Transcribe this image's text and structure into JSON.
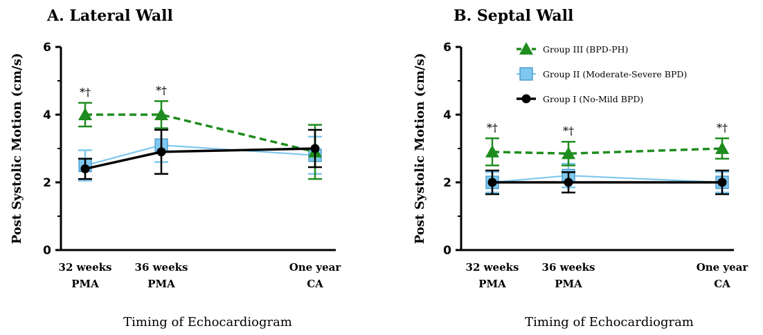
{
  "colors": {
    "group3": "#1e8c1e",
    "group2": "#7fc8ef",
    "group1": "#000000"
  },
  "legend": {
    "placement": "top-right of panel B",
    "items": [
      {
        "label": "Group III (BPD-PH)",
        "marker": "triangle",
        "line": "dashed",
        "color": "#1e8c1e"
      },
      {
        "label": "Group II (Moderate-Severe BPD)",
        "marker": "square",
        "line": "solid",
        "color": "#7fc8ef"
      },
      {
        "label": "Group I (No-Mild BPD)",
        "marker": "circle",
        "line": "solid",
        "color": "#000000"
      }
    ]
  },
  "chart_data": [
    {
      "type": "line",
      "title": "A. Lateral Wall",
      "xlabel": "Timing of Echocardiogram",
      "ylabel": "Post Systolic Motion (cm/s)",
      "ylim": [
        0,
        6
      ],
      "yticks": [
        "0",
        "2",
        "4",
        "6"
      ],
      "x_positions": [
        32,
        36,
        48
      ],
      "xticks": [
        {
          "line1": "32 weeks",
          "line2": "PMA"
        },
        {
          "line1": "36 weeks",
          "line2": "PMA"
        },
        {
          "line1": "One year",
          "line2": "CA"
        }
      ],
      "series": [
        {
          "name": "Group III (BPD-PH)",
          "values": [
            4.0,
            4.0,
            2.9
          ],
          "err": [
            0.35,
            0.4,
            0.8
          ]
        },
        {
          "name": "Group II (Moderate-Severe BPD)",
          "values": [
            2.5,
            3.1,
            2.8
          ],
          "err": [
            0.45,
            0.5,
            0.55
          ]
        },
        {
          "name": "Group I (No-Mild BPD)",
          "values": [
            2.4,
            2.9,
            3.0
          ],
          "err": [
            0.3,
            0.65,
            0.55
          ]
        }
      ],
      "significance": [
        {
          "x_index": 0,
          "text": "*†"
        },
        {
          "x_index": 1,
          "text": "*†"
        }
      ]
    },
    {
      "type": "line",
      "title": "B. Septal Wall",
      "xlabel": "Timing of Echocardiogram",
      "ylabel": "Post Systolic Motion (cm/s)",
      "ylim": [
        0,
        6
      ],
      "yticks": [
        "0",
        "2",
        "4",
        "6"
      ],
      "x_positions": [
        32,
        36,
        48
      ],
      "xticks": [
        {
          "line1": "32 weeks",
          "line2": "PMA"
        },
        {
          "line1": "36 weeks",
          "line2": "PMA"
        },
        {
          "line1": "One year",
          "line2": "CA"
        }
      ],
      "series": [
        {
          "name": "Group III (BPD-PH)",
          "values": [
            2.9,
            2.85,
            3.0
          ],
          "err": [
            0.4,
            0.35,
            0.3
          ]
        },
        {
          "name": "Group II (Moderate-Severe BPD)",
          "values": [
            2.0,
            2.2,
            2.0
          ],
          "err": [
            0.3,
            0.35,
            0.3
          ]
        },
        {
          "name": "Group I (No-Mild BPD)",
          "values": [
            2.0,
            2.0,
            2.0
          ],
          "err": [
            0.35,
            0.3,
            0.35
          ]
        }
      ],
      "significance": [
        {
          "x_index": 0,
          "text": "*†"
        },
        {
          "x_index": 1,
          "text": "*†"
        },
        {
          "x_index": 2,
          "text": "*†"
        }
      ]
    }
  ]
}
